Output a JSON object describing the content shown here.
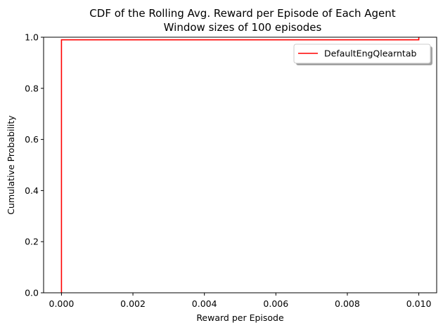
{
  "chart_data": {
    "type": "line",
    "title": "CDF of the Rolling Avg. Reward per Episode of Each Agent",
    "subtitle": "Window sizes of 100 episodes",
    "xlabel": "Reward per Episode",
    "ylabel": "Cumulative Probability",
    "xlim": [
      -0.0005,
      0.0105
    ],
    "ylim": [
      0,
      1
    ],
    "x_ticks": [
      0.0,
      0.002,
      0.004,
      0.006,
      0.008,
      0.01
    ],
    "x_tick_labels": [
      "0.000",
      "0.002",
      "0.004",
      "0.006",
      "0.008",
      "0.010"
    ],
    "y_ticks": [
      0.0,
      0.2,
      0.4,
      0.6,
      0.8,
      1.0
    ],
    "y_tick_labels": [
      "0.0",
      "0.2",
      "0.4",
      "0.6",
      "0.8",
      "1.0"
    ],
    "grid": false,
    "legend_position": "top-right",
    "series": [
      {
        "name": "DefaultEngQlearntab",
        "color": "#ff0000",
        "step": true,
        "x": [
          0.0,
          0.0,
          0.01,
          0.01
        ],
        "y": [
          0.0,
          0.99,
          0.99,
          1.0
        ]
      }
    ]
  }
}
